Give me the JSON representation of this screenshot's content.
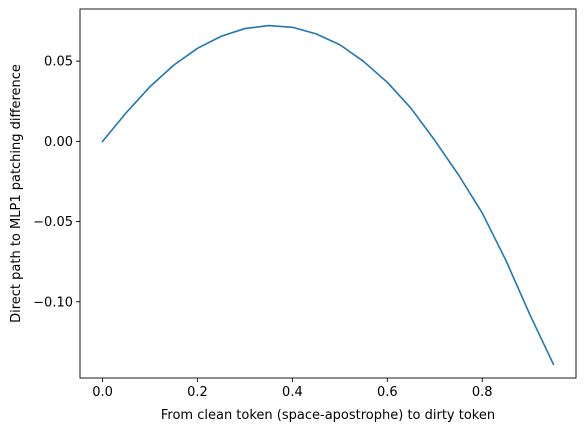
{
  "chart_data": {
    "type": "line",
    "title": "",
    "xlabel": "From clean token (space-apostrophe) to dirty token",
    "ylabel": "Direct path to MLP1 patching difference",
    "xlim": [
      -0.0475,
      0.9975
    ],
    "ylim": [
      -0.1475,
      0.0825
    ],
    "grid": false,
    "xticks": [
      0.0,
      0.2,
      0.4,
      0.6,
      0.8
    ],
    "xtick_labels": [
      "0.0",
      "0.2",
      "0.4",
      "0.6",
      "0.8"
    ],
    "yticks": [
      0.05,
      0.0,
      -0.05,
      -0.1
    ],
    "ytick_labels": [
      "0.05",
      "0.00",
      "−0.05",
      "−0.10"
    ],
    "series": [
      {
        "color": "#1f77b4",
        "x": [
          0.0,
          0.05,
          0.1,
          0.15,
          0.2,
          0.25,
          0.3,
          0.35,
          0.4,
          0.45,
          0.5,
          0.55,
          0.6,
          0.65,
          0.7,
          0.75,
          0.8,
          0.85,
          0.9,
          0.95
        ],
        "y": [
          0.0,
          0.0179,
          0.0341,
          0.0475,
          0.058,
          0.0655,
          0.0703,
          0.0722,
          0.0711,
          0.067,
          0.0602,
          0.0498,
          0.0368,
          0.0206,
          0.0006,
          -0.0209,
          -0.0447,
          -0.0743,
          -0.1078,
          -0.139
        ]
      }
    ]
  }
}
